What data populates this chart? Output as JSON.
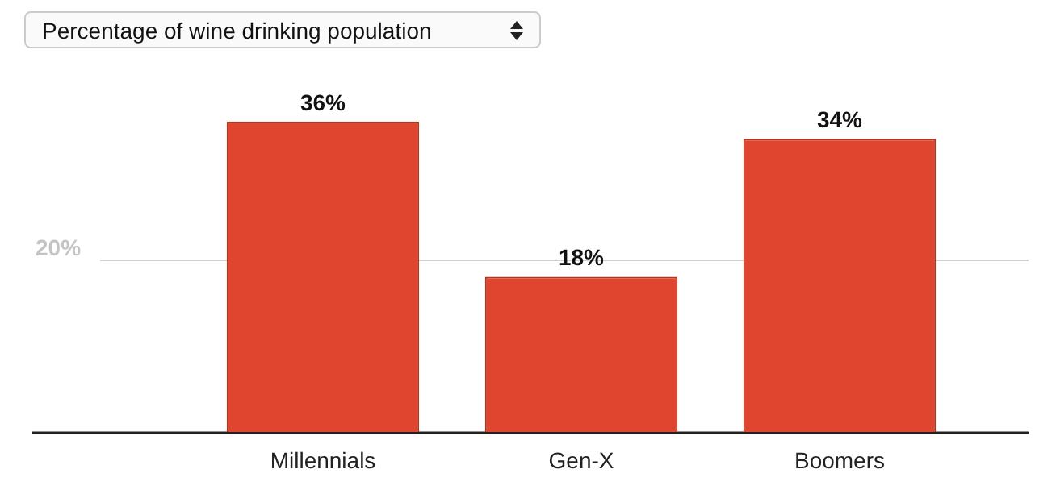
{
  "chart_data": {
    "type": "bar",
    "title": "Percentage of wine drinking population",
    "categories": [
      "Millennials",
      "Gen-X",
      "Boomers"
    ],
    "values": [
      36,
      18,
      34
    ],
    "color": "#e0452f",
    "ref_lines": [
      {
        "axis": "y",
        "value": 20,
        "label": "20%",
        "color": "#d0d0d0"
      }
    ],
    "value_labels": [
      "36%",
      "18%",
      "34%"
    ]
  }
}
